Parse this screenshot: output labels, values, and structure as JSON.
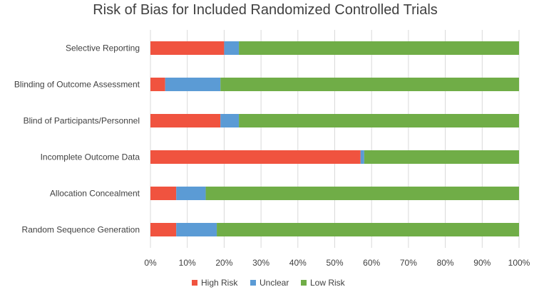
{
  "chart_data": {
    "type": "bar",
    "orientation": "horizontal",
    "stacked": true,
    "title": "Risk of Bias for Included Randomized Controlled Trials",
    "categories": [
      "Selective Reporting",
      "Blinding of Outcome Assessment",
      "Blind of Participants/Personnel",
      "Incomplete Outcome Data",
      "Allocation Concealment",
      "Random Sequence Generation"
    ],
    "series": [
      {
        "name": "High Risk",
        "color": "#f0533f",
        "values": [
          20,
          4,
          19,
          57,
          7,
          7
        ]
      },
      {
        "name": "Unclear",
        "color": "#5b9bd5",
        "values": [
          4,
          15,
          5,
          1,
          8,
          11
        ]
      },
      {
        "name": "Low Risk",
        "color": "#70ad47",
        "values": [
          76,
          81,
          76,
          42,
          85,
          82
        ]
      }
    ],
    "xlim": [
      0,
      100
    ],
    "xticks": [
      "0%",
      "10%",
      "20%",
      "30%",
      "40%",
      "50%",
      "60%",
      "70%",
      "80%",
      "90%",
      "100%"
    ],
    "xlabel": "",
    "ylabel": "",
    "grid": true,
    "legend_position": "bottom"
  }
}
